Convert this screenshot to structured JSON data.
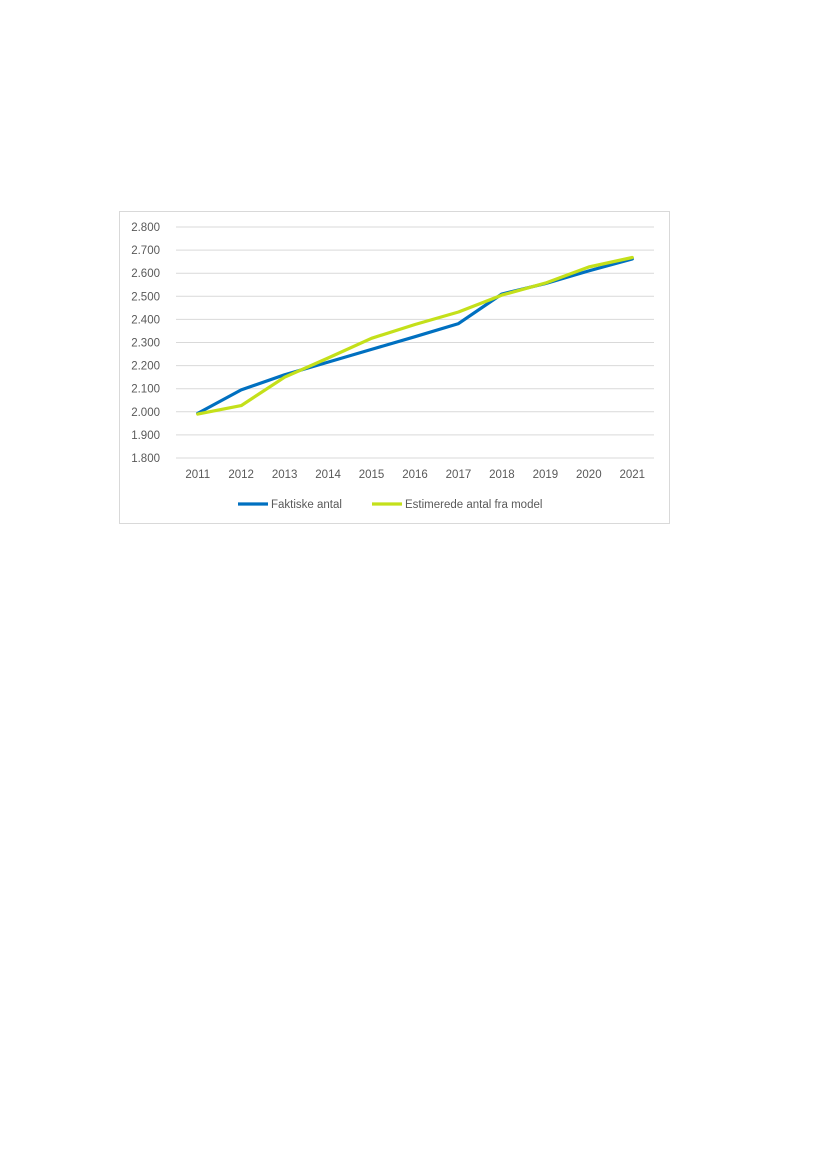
{
  "chart_data": {
    "type": "line",
    "title": "",
    "xlabel": "",
    "ylabel": "",
    "categories": [
      "2011",
      "2012",
      "2013",
      "2014",
      "2015",
      "2016",
      "2017",
      "2018",
      "2019",
      "2020",
      "2021"
    ],
    "ylim": [
      1800,
      2800
    ],
    "yticks": [
      1800,
      1900,
      2000,
      2100,
      2200,
      2300,
      2400,
      2500,
      2600,
      2700,
      2800
    ],
    "ytick_labels": [
      "1.800",
      "1.900",
      "2.000",
      "2.100",
      "2.200",
      "2.300",
      "2.400",
      "2.500",
      "2.600",
      "2.700",
      "2.800"
    ],
    "grid": true,
    "legend_position": "bottom",
    "series": [
      {
        "name": "Faktiske antal",
        "color": "#0070c0",
        "values": [
          1993,
          2095,
          2160,
          2215,
          2270,
          2325,
          2382,
          2510,
          2555,
          2610,
          2662
        ]
      },
      {
        "name": "Estimerede antal fra model",
        "color": "#c4e01a",
        "values": [
          1990,
          2027,
          2150,
          2233,
          2318,
          2378,
          2432,
          2505,
          2557,
          2627,
          2668
        ]
      }
    ]
  }
}
